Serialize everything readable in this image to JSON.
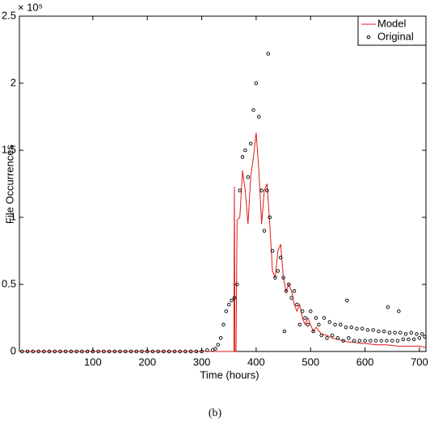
{
  "chart_data": {
    "type": "line",
    "x_label": "Time (hours)",
    "y_label": "File Occurrences",
    "y_exponent": "× 10⁵",
    "caption": "(b)",
    "xlim": [
      -35,
      712
    ],
    "ylim": [
      0,
      2.5
    ],
    "xticks": [
      100,
      200,
      300,
      400,
      500,
      600,
      700
    ],
    "yticks": [
      0,
      0.5,
      1,
      1.5,
      2,
      2.5
    ],
    "legend": "top-right",
    "series": [
      {
        "name": "Model",
        "color": "#e0191b",
        "style": "line",
        "x": [
          -35,
          359,
          360,
          361,
          363,
          365,
          370,
          375,
          380,
          385,
          390,
          395,
          400,
          405,
          410,
          415,
          420,
          425,
          430,
          435,
          440,
          445,
          450,
          455,
          460,
          465,
          470,
          475,
          480,
          485,
          490,
          495,
          500,
          505,
          510,
          520,
          530,
          540,
          550,
          560,
          570,
          580,
          590,
          600,
          620,
          640,
          660,
          680,
          700,
          712
        ],
        "values": [
          0,
          0,
          1.23,
          0,
          0,
          0.98,
          1.0,
          1.35,
          1.2,
          0.95,
          1.3,
          1.45,
          1.63,
          1.35,
          0.95,
          1.2,
          1.25,
          0.95,
          0.6,
          0.55,
          0.75,
          0.8,
          0.55,
          0.45,
          0.5,
          0.45,
          0.35,
          0.3,
          0.35,
          0.25,
          0.2,
          0.25,
          0.2,
          0.15,
          0.18,
          0.13,
          0.12,
          0.1,
          0.09,
          0.08,
          0.07,
          0.07,
          0.06,
          0.06,
          0.05,
          0.05,
          0.04,
          0.04,
          0.04,
          0.03
        ]
      },
      {
        "name": "Original",
        "color": "#000000",
        "style": "markers",
        "x": [
          -30,
          -20,
          -10,
          0,
          10,
          20,
          30,
          40,
          50,
          60,
          70,
          80,
          90,
          100,
          110,
          120,
          130,
          140,
          150,
          160,
          170,
          180,
          190,
          200,
          210,
          220,
          230,
          240,
          250,
          260,
          270,
          280,
          290,
          300,
          310,
          320,
          325,
          330,
          335,
          340,
          345,
          350,
          355,
          360,
          365,
          370,
          375,
          380,
          385,
          390,
          395,
          400,
          405,
          410,
          415,
          420,
          422,
          425,
          430,
          435,
          440,
          445,
          450,
          452,
          455,
          460,
          465,
          470,
          475,
          480,
          485,
          490,
          495,
          500,
          505,
          510,
          515,
          520,
          525,
          530,
          535,
          540,
          545,
          550,
          555,
          560,
          565,
          567,
          570,
          575,
          580,
          585,
          590,
          595,
          600,
          605,
          610,
          615,
          620,
          625,
          630,
          635,
          640,
          642,
          645,
          650,
          655,
          660,
          662,
          665,
          670,
          675,
          680,
          685,
          690,
          695,
          700,
          705,
          710
        ],
        "values": [
          0,
          0,
          0,
          0,
          0,
          0,
          0,
          0,
          0,
          0,
          0,
          0,
          0,
          0,
          0,
          0,
          0,
          0,
          0,
          0,
          0,
          0,
          0,
          0,
          0,
          0,
          0,
          0,
          0,
          0,
          0,
          0,
          0,
          0,
          0.01,
          0.01,
          0.02,
          0.05,
          0.1,
          0.2,
          0.3,
          0.35,
          0.38,
          0.4,
          0.5,
          1.2,
          1.45,
          1.5,
          1.3,
          1.55,
          1.8,
          2.0,
          1.75,
          1.2,
          0.9,
          1.2,
          2.22,
          1.0,
          0.75,
          0.55,
          0.6,
          0.7,
          0.55,
          0.15,
          0.45,
          0.5,
          0.4,
          0.45,
          0.35,
          0.2,
          0.3,
          0.25,
          0.2,
          0.3,
          0.15,
          0.25,
          0.2,
          0.12,
          0.25,
          0.1,
          0.22,
          0.12,
          0.2,
          0.1,
          0.2,
          0.08,
          0.18,
          0.38,
          0.1,
          0.18,
          0.08,
          0.17,
          0.08,
          0.17,
          0.08,
          0.16,
          0.08,
          0.16,
          0.08,
          0.15,
          0.08,
          0.15,
          0.08,
          0.33,
          0.14,
          0.08,
          0.14,
          0.08,
          0.3,
          0.14,
          0.09,
          0.13,
          0.09,
          0.14,
          0.09,
          0.13,
          0.1,
          0.13,
          0.11
        ]
      }
    ]
  }
}
